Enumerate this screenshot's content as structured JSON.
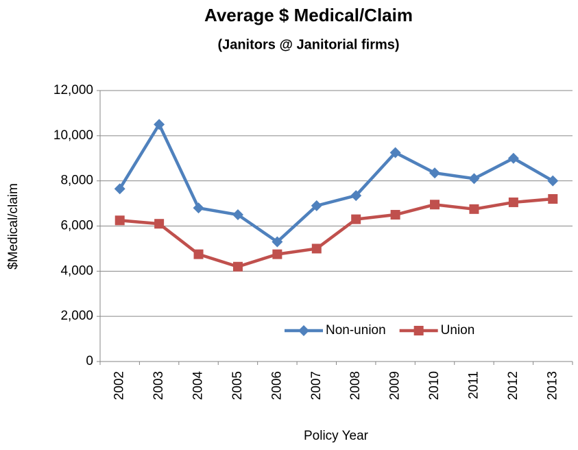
{
  "chart_data": {
    "type": "line",
    "title": "Average $ Medical/Claim",
    "subtitle": "(Janitors @ Janitorial firms)",
    "x_label": "Policy Year",
    "y_label": "$Medical/claim",
    "categories": [
      "2002",
      "2003",
      "2004",
      "2005",
      "2006",
      "2007",
      "2008",
      "2009",
      "2010",
      "2011",
      "2012",
      "2013"
    ],
    "series": [
      {
        "name": "Non-union",
        "color": "#4f81bd",
        "marker": "diamond",
        "values": [
          7650,
          10500,
          6800,
          6500,
          5300,
          6900,
          7350,
          9250,
          8350,
          8100,
          9000,
          8000
        ]
      },
      {
        "name": "Union",
        "color": "#c0504d",
        "marker": "square",
        "values": [
          6250,
          6100,
          4750,
          4200,
          4750,
          5000,
          6300,
          6500,
          6950,
          6750,
          7050,
          7200
        ]
      }
    ],
    "ylim": [
      0,
      12000
    ],
    "yticks": [
      0,
      {
        "value": 2000,
        "label": "2,000"
      },
      {
        "value": 4000,
        "label": "4,000"
      },
      {
        "value": 6000,
        "label": "6,000"
      },
      {
        "value": 8000,
        "label": "8,000"
      },
      {
        "value": 10000,
        "label": "10,000"
      },
      {
        "value": 12000,
        "label": "12,000"
      }
    ],
    "grid": true,
    "legend": "bottom"
  }
}
